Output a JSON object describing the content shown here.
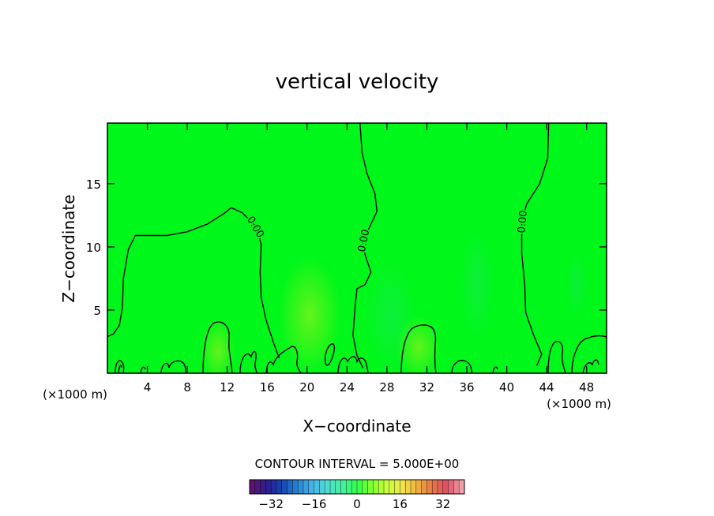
{
  "chart_data": {
    "type": "heatmap",
    "title": "vertical velocity",
    "xlabel": "X−coordinate",
    "ylabel": "Z−coordinate",
    "x_unit_left": "(×1000 m)",
    "x_unit_right": "(×1000 m)",
    "xlim": [
      0,
      50
    ],
    "ylim": [
      0,
      19.8
    ],
    "xticks": [
      4,
      8,
      12,
      16,
      20,
      24,
      28,
      32,
      36,
      40,
      44,
      48
    ],
    "yticks": [
      5,
      10,
      15
    ],
    "grid": false,
    "contour_interval_text": "CONTOUR INTERVAL = 5.000E+00",
    "contour_label": "0.00",
    "colorbar": {
      "range": [
        -40,
        40
      ],
      "ticks": [
        -32,
        -16,
        0,
        16,
        32
      ],
      "colors": [
        "#5a1470",
        "#2a1e8c",
        "#1446b4",
        "#2a82d2",
        "#46b4e6",
        "#50dcd2",
        "#46f0a0",
        "#32ff50",
        "#82ff32",
        "#c8ff3c",
        "#f0e650",
        "#f0b43c",
        "#e67846",
        "#dc5064",
        "#f0a0aa"
      ]
    },
    "zero_contour_lines": [
      [
        [
          0,
          2.9
        ],
        [
          0.6,
          3.1
        ],
        [
          1.2,
          3.8
        ],
        [
          1.5,
          5.2
        ],
        [
          1.6,
          7.5
        ],
        [
          2.1,
          9.8
        ],
        [
          2.8,
          10.9
        ],
        [
          4.0,
          10.9
        ],
        [
          6.0,
          10.9
        ],
        [
          8.0,
          11.2
        ],
        [
          10.0,
          11.8
        ],
        [
          11.6,
          12.6
        ],
        [
          12.4,
          13.1
        ],
        [
          13.5,
          12.7
        ],
        [
          14.9,
          11.6
        ],
        [
          15.4,
          10.2
        ],
        [
          15.3,
          8.0
        ],
        [
          15.4,
          6.0
        ],
        [
          15.9,
          4.2
        ],
        [
          16.6,
          2.5
        ],
        [
          17.2,
          1.2
        ]
      ],
      [
        [
          25.3,
          19.8
        ],
        [
          25.5,
          17.5
        ],
        [
          26.0,
          15.8
        ],
        [
          26.8,
          14.2
        ],
        [
          27.0,
          12.8
        ],
        [
          26.4,
          11.8
        ],
        [
          25.6,
          10.5
        ],
        [
          25.8,
          9.4
        ],
        [
          26.4,
          8.0
        ],
        [
          25.8,
          7.0
        ],
        [
          25.0,
          6.7
        ],
        [
          24.8,
          5.2
        ],
        [
          24.6,
          3.0
        ],
        [
          25.0,
          1.4
        ],
        [
          25.6,
          0.4
        ]
      ],
      [
        [
          44.2,
          19.8
        ],
        [
          44.1,
          17.0
        ],
        [
          43.3,
          15.0
        ],
        [
          42.0,
          13.4
        ],
        [
          41.5,
          12.0
        ],
        [
          41.5,
          9.5
        ],
        [
          41.8,
          7.0
        ],
        [
          41.9,
          4.8
        ],
        [
          42.7,
          3.0
        ],
        [
          43.5,
          1.5
        ],
        [
          43.0,
          0.6
        ]
      ]
    ]
  }
}
